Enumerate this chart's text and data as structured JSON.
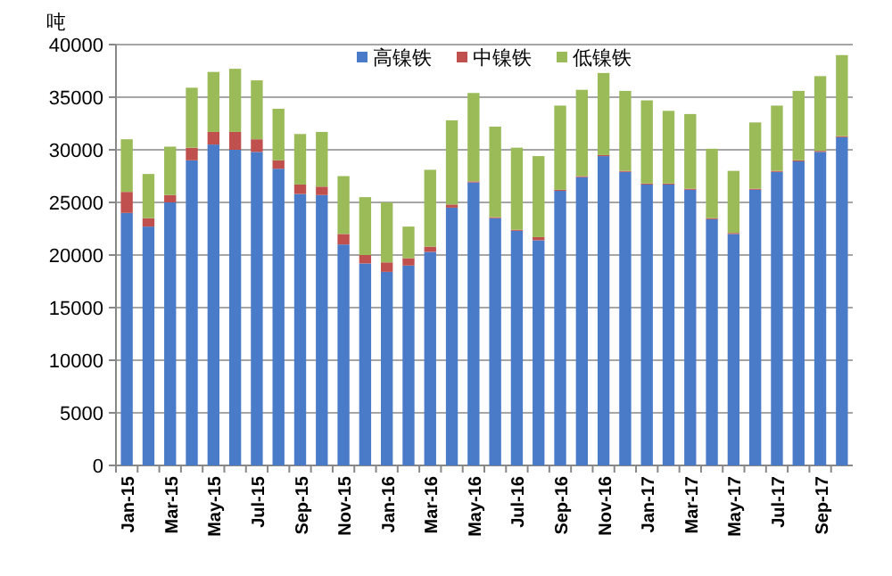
{
  "chart_data": {
    "type": "bar",
    "stacked": true,
    "ylabel": "吨",
    "categories": [
      "Jan-15",
      null,
      "Mar-15",
      null,
      "May-15",
      null,
      "Jul-15",
      null,
      "Sep-15",
      null,
      "Nov-15",
      null,
      "Jan-16",
      null,
      "Mar-16",
      null,
      "May-16",
      null,
      "Jul-16",
      null,
      "Sep-16",
      null,
      "Nov-16",
      null,
      "Jan-17",
      null,
      "Mar-17",
      null,
      "May-17",
      null,
      "Jul-17",
      null,
      "Sep-17",
      null
    ],
    "series": [
      {
        "name": "高镍铁",
        "color": "#4a7bc8",
        "values": [
          24000,
          22700,
          25000,
          29000,
          30500,
          30000,
          29800,
          28200,
          25800,
          25700,
          21000,
          19200,
          18400,
          19000,
          20300,
          24500,
          26900,
          23500,
          22300,
          21400,
          26100,
          27400,
          29400,
          27900,
          26700,
          26700,
          26200,
          23400,
          22000,
          26200,
          27900,
          28900,
          29800,
          31200
        ]
      },
      {
        "name": "中镍铁",
        "color": "#c0504d",
        "values": [
          2000,
          800,
          700,
          1200,
          1200,
          1700,
          1200,
          800,
          900,
          800,
          1000,
          800,
          900,
          700,
          500,
          300,
          100,
          100,
          100,
          300,
          100,
          100,
          100,
          100,
          100,
          100,
          100,
          100,
          100,
          100,
          100,
          100,
          100,
          100
        ]
      },
      {
        "name": "低镍铁",
        "color": "#9bbb59",
        "values": [
          5000,
          4200,
          4600,
          5700,
          5700,
          6000,
          5600,
          4900,
          4800,
          5200,
          5500,
          5500,
          5700,
          3000,
          7300,
          8000,
          8400,
          8600,
          7800,
          7700,
          8000,
          8200,
          7800,
          7600,
          7900,
          6900,
          7100,
          6600,
          5900,
          6300,
          6200,
          6600,
          7100,
          7700
        ]
      }
    ],
    "ylim": [
      0,
      40000
    ],
    "yticks": [
      0,
      5000,
      10000,
      15000,
      20000,
      25000,
      30000,
      35000,
      40000
    ],
    "grid": "y",
    "legend": "top"
  }
}
